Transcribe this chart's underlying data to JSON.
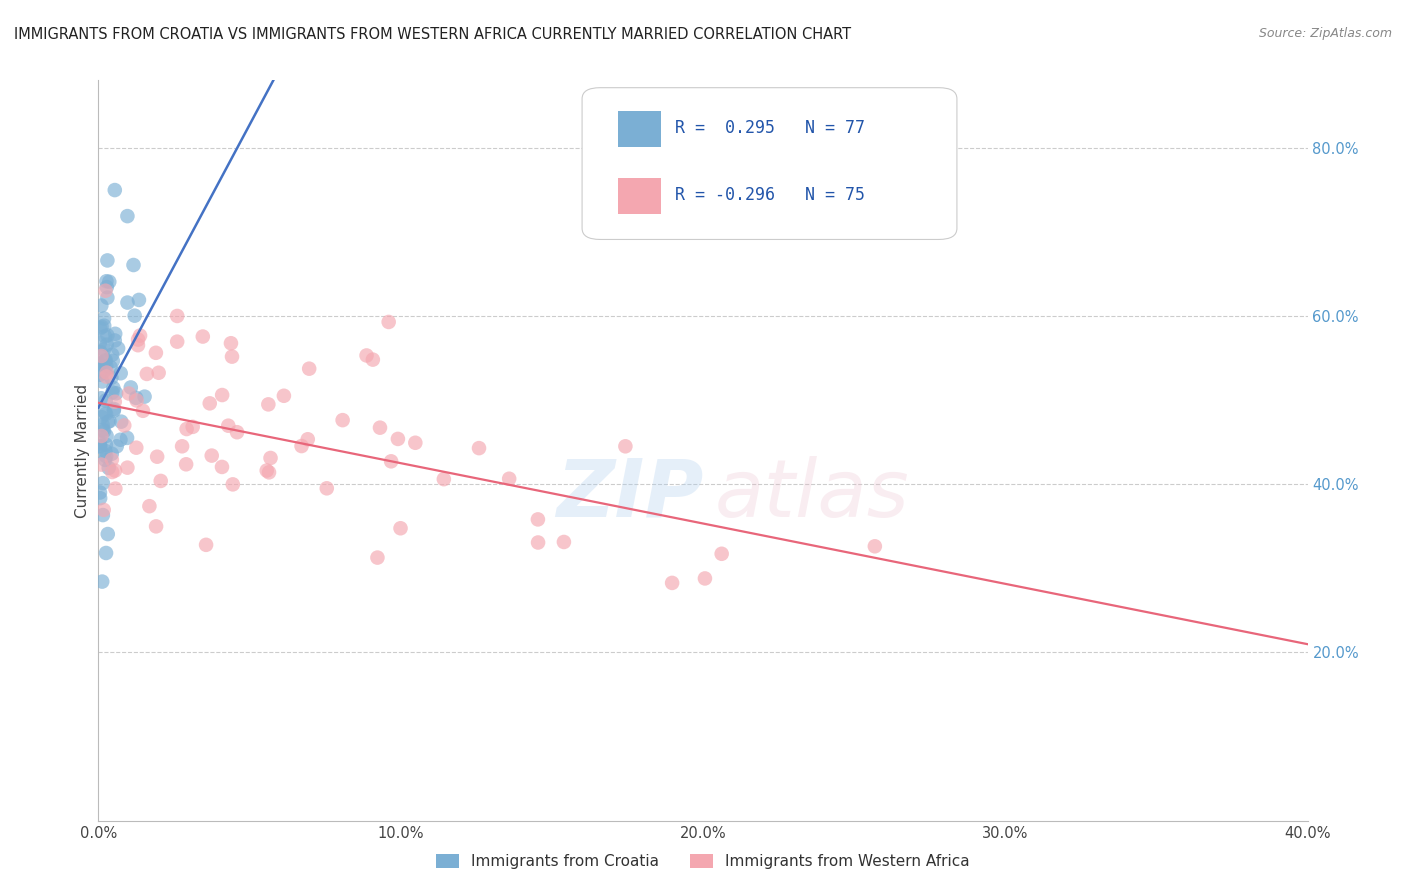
{
  "title": "IMMIGRANTS FROM CROATIA VS IMMIGRANTS FROM WESTERN AFRICA CURRENTLY MARRIED CORRELATION CHART",
  "source": "Source: ZipAtlas.com",
  "ylabel_left": "Currently Married",
  "x_min": 0.0,
  "x_max": 0.4,
  "y_min": 0.0,
  "y_max": 0.88,
  "x_ticks": [
    0.0,
    0.05,
    0.1,
    0.15,
    0.2,
    0.25,
    0.3,
    0.35,
    0.4
  ],
  "x_tick_labels": [
    "0.0%",
    "",
    "10.0%",
    "",
    "20.0%",
    "",
    "30.0%",
    "",
    "40.0%"
  ],
  "right_y_ticks": [
    0.2,
    0.4,
    0.6,
    0.8
  ],
  "right_y_tick_labels": [
    "20.0%",
    "40.0%",
    "60.0%",
    "80.0%"
  ],
  "blue_color": "#7BAFD4",
  "pink_color": "#F4A7B0",
  "blue_line_color": "#4472C4",
  "pink_line_color": "#E8667A",
  "blue_label": "Immigrants from Croatia",
  "pink_label": "Immigrants from Western Africa",
  "legend_text_color": "#2255AA",
  "right_axis_color": "#5599CC"
}
